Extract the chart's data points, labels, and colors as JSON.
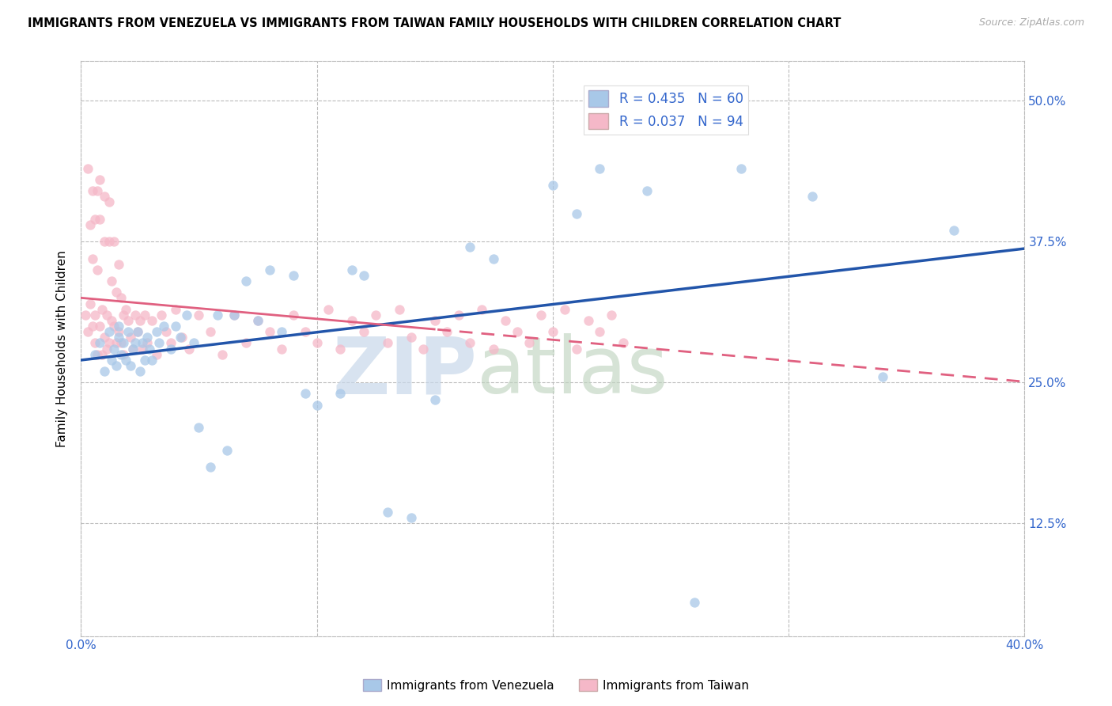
{
  "title": "IMMIGRANTS FROM VENEZUELA VS IMMIGRANTS FROM TAIWAN FAMILY HOUSEHOLDS WITH CHILDREN CORRELATION CHART",
  "source": "Source: ZipAtlas.com",
  "ylabel": "Family Households with Children",
  "legend_blue_label": "Immigrants from Venezuela",
  "legend_pink_label": "Immigrants from Taiwan",
  "R_blue": 0.435,
  "N_blue": 60,
  "R_pink": 0.037,
  "N_pink": 94,
  "blue_color": "#a8c8e8",
  "blue_line_color": "#2255aa",
  "pink_color": "#f5b8c8",
  "pink_line_color": "#e06080",
  "x_min": 0.0,
  "x_max": 0.4,
  "y_min": 0.025,
  "y_max": 0.535,
  "ytick_values": [
    0.125,
    0.25,
    0.375,
    0.5
  ],
  "ytick_labels": [
    "12.5%",
    "25.0%",
    "37.5%",
    "50.0%"
  ],
  "xtick_values": [
    0.0,
    0.1,
    0.2,
    0.3,
    0.4
  ],
  "venezuela_x": [
    0.006,
    0.008,
    0.01,
    0.012,
    0.013,
    0.014,
    0.015,
    0.016,
    0.016,
    0.017,
    0.018,
    0.019,
    0.02,
    0.021,
    0.022,
    0.023,
    0.024,
    0.025,
    0.026,
    0.027,
    0.028,
    0.029,
    0.03,
    0.032,
    0.033,
    0.035,
    0.038,
    0.04,
    0.042,
    0.045,
    0.048,
    0.05,
    0.055,
    0.058,
    0.062,
    0.065,
    0.07,
    0.075,
    0.08,
    0.085,
    0.09,
    0.095,
    0.1,
    0.11,
    0.115,
    0.12,
    0.13,
    0.14,
    0.15,
    0.165,
    0.175,
    0.2,
    0.21,
    0.22,
    0.24,
    0.26,
    0.28,
    0.31,
    0.34,
    0.37
  ],
  "venezuela_y": [
    0.275,
    0.285,
    0.26,
    0.295,
    0.27,
    0.28,
    0.265,
    0.29,
    0.3,
    0.275,
    0.285,
    0.27,
    0.295,
    0.265,
    0.28,
    0.285,
    0.295,
    0.26,
    0.285,
    0.27,
    0.29,
    0.28,
    0.27,
    0.295,
    0.285,
    0.3,
    0.28,
    0.3,
    0.29,
    0.31,
    0.285,
    0.21,
    0.175,
    0.31,
    0.19,
    0.31,
    0.34,
    0.305,
    0.35,
    0.295,
    0.345,
    0.24,
    0.23,
    0.24,
    0.35,
    0.345,
    0.135,
    0.13,
    0.235,
    0.37,
    0.36,
    0.425,
    0.4,
    0.44,
    0.42,
    0.055,
    0.44,
    0.415,
    0.255,
    0.385
  ],
  "taiwan_x": [
    0.002,
    0.003,
    0.003,
    0.004,
    0.004,
    0.005,
    0.005,
    0.005,
    0.006,
    0.006,
    0.006,
    0.007,
    0.007,
    0.007,
    0.008,
    0.008,
    0.008,
    0.009,
    0.009,
    0.01,
    0.01,
    0.01,
    0.011,
    0.011,
    0.012,
    0.012,
    0.012,
    0.013,
    0.013,
    0.014,
    0.014,
    0.015,
    0.015,
    0.016,
    0.016,
    0.017,
    0.017,
    0.018,
    0.018,
    0.019,
    0.02,
    0.021,
    0.022,
    0.023,
    0.024,
    0.025,
    0.026,
    0.027,
    0.028,
    0.03,
    0.032,
    0.034,
    0.036,
    0.038,
    0.04,
    0.043,
    0.046,
    0.05,
    0.055,
    0.06,
    0.065,
    0.07,
    0.075,
    0.08,
    0.085,
    0.09,
    0.095,
    0.1,
    0.105,
    0.11,
    0.115,
    0.12,
    0.125,
    0.13,
    0.135,
    0.14,
    0.145,
    0.15,
    0.155,
    0.16,
    0.165,
    0.17,
    0.175,
    0.18,
    0.185,
    0.19,
    0.195,
    0.2,
    0.205,
    0.21,
    0.215,
    0.22,
    0.225,
    0.23
  ],
  "taiwan_y": [
    0.31,
    0.44,
    0.295,
    0.32,
    0.39,
    0.3,
    0.42,
    0.36,
    0.285,
    0.31,
    0.395,
    0.275,
    0.35,
    0.42,
    0.3,
    0.395,
    0.43,
    0.275,
    0.315,
    0.29,
    0.375,
    0.415,
    0.28,
    0.31,
    0.285,
    0.375,
    0.41,
    0.305,
    0.34,
    0.3,
    0.375,
    0.285,
    0.33,
    0.295,
    0.355,
    0.285,
    0.325,
    0.31,
    0.275,
    0.315,
    0.305,
    0.29,
    0.28,
    0.31,
    0.295,
    0.305,
    0.28,
    0.31,
    0.285,
    0.305,
    0.275,
    0.31,
    0.295,
    0.285,
    0.315,
    0.29,
    0.28,
    0.31,
    0.295,
    0.275,
    0.31,
    0.285,
    0.305,
    0.295,
    0.28,
    0.31,
    0.295,
    0.285,
    0.315,
    0.28,
    0.305,
    0.295,
    0.31,
    0.285,
    0.315,
    0.29,
    0.28,
    0.305,
    0.295,
    0.31,
    0.285,
    0.315,
    0.28,
    0.305,
    0.295,
    0.285,
    0.31,
    0.295,
    0.315,
    0.28,
    0.305,
    0.295,
    0.31,
    0.285
  ]
}
